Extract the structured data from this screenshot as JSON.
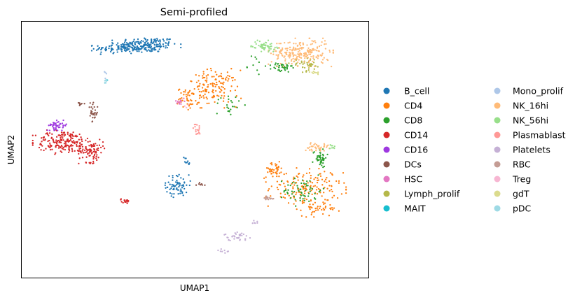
{
  "chart_data": {
    "type": "scatter",
    "title": "Semi-profiled",
    "xlabel": "UMAP1",
    "ylabel": "UMAP2",
    "xlim": [
      0,
      100
    ],
    "ylim": [
      0,
      100
    ],
    "ticks": false,
    "grid": false,
    "legend_placement": "right",
    "legend_columns": 2,
    "series": [
      {
        "name": "B_cell",
        "color": "#1f77b4",
        "clusters": [
          {
            "cx": 36,
            "cy": 91,
            "rx": 9,
            "ry": 3,
            "n": 170
          },
          {
            "cx": 29,
            "cy": 89.5,
            "rx": 8,
            "ry": 2,
            "n": 110
          },
          {
            "cx": 45,
            "cy": 36,
            "rx": 3.3,
            "ry": 4.2,
            "n": 70
          },
          {
            "cx": 47.5,
            "cy": 45.5,
            "rx": 1,
            "ry": 2,
            "n": 10
          }
        ]
      },
      {
        "name": "CD4",
        "color": "#ff7f0e",
        "clusters": [
          {
            "cx": 55,
            "cy": 74,
            "rx": 7.5,
            "ry": 7,
            "n": 150
          },
          {
            "cx": 48,
            "cy": 70,
            "rx": 3,
            "ry": 4,
            "n": 40
          },
          {
            "cx": 82,
            "cy": 35,
            "rx": 10.5,
            "ry": 7.5,
            "n": 160
          },
          {
            "cx": 73,
            "cy": 42,
            "rx": 3.5,
            "ry": 3,
            "n": 40
          },
          {
            "cx": 86,
            "cy": 27,
            "rx": 5,
            "ry": 3,
            "n": 40
          }
        ]
      },
      {
        "name": "CD8",
        "color": "#2ca02c",
        "clusters": [
          {
            "cx": 75,
            "cy": 82,
            "rx": 3,
            "ry": 2,
            "n": 40
          },
          {
            "cx": 86,
            "cy": 47,
            "rx": 2,
            "ry": 3.5,
            "n": 45
          },
          {
            "cx": 81,
            "cy": 34,
            "rx": 5.5,
            "ry": 5.5,
            "n": 60
          },
          {
            "cx": 60,
            "cy": 68,
            "rx": 4,
            "ry": 5,
            "n": 22
          },
          {
            "cx": 67,
            "cy": 83,
            "rx": 3,
            "ry": 4,
            "n": 10
          }
        ]
      },
      {
        "name": "CD14",
        "color": "#d62728",
        "clusters": [
          {
            "cx": 12,
            "cy": 53,
            "rx": 8,
            "ry": 4.5,
            "n": 190
          },
          {
            "cx": 20,
            "cy": 49.5,
            "rx": 3.5,
            "ry": 4.5,
            "n": 90
          },
          {
            "cx": 30,
            "cy": 30,
            "rx": 1.3,
            "ry": 0.9,
            "n": 20
          }
        ]
      },
      {
        "name": "CD16",
        "color": "#9e38e0",
        "clusters": [
          {
            "cx": 10.5,
            "cy": 59.5,
            "rx": 2.8,
            "ry": 1.8,
            "n": 45
          }
        ]
      },
      {
        "name": "DCs",
        "color": "#8c564b",
        "clusters": [
          {
            "cx": 20.5,
            "cy": 64,
            "rx": 1.4,
            "ry": 4,
            "n": 30
          },
          {
            "cx": 17,
            "cy": 68,
            "rx": 1,
            "ry": 1,
            "n": 8
          },
          {
            "cx": 51.5,
            "cy": 36.5,
            "rx": 1.2,
            "ry": 0.6,
            "n": 8
          }
        ]
      },
      {
        "name": "HSC",
        "color": "#e377c2",
        "clusters": [
          {
            "cx": 45.5,
            "cy": 69,
            "rx": 1.5,
            "ry": 1.5,
            "n": 12
          }
        ]
      },
      {
        "name": "Lymph_prolif",
        "color": "#b5b849",
        "clusters": [
          {
            "cx": 82,
            "cy": 83,
            "rx": 4.5,
            "ry": 2.5,
            "n": 45
          }
        ]
      },
      {
        "name": "MAIT",
        "color": "#17becf",
        "clusters": [
          {
            "cx": 24.5,
            "cy": 77,
            "rx": 0.7,
            "ry": 0.8,
            "n": 3
          }
        ]
      },
      {
        "name": "Mono_prolif",
        "color": "#aec7e8",
        "clusters": [
          {
            "cx": 24,
            "cy": 79,
            "rx": 0.5,
            "ry": 2,
            "n": 4
          }
        ]
      },
      {
        "name": "NK_16hi",
        "color": "#ffbb78",
        "clusters": [
          {
            "cx": 80.5,
            "cy": 88,
            "rx": 8.5,
            "ry": 5,
            "n": 230
          },
          {
            "cx": 85,
            "cy": 51,
            "rx": 3.5,
            "ry": 1.5,
            "n": 40
          }
        ]
      },
      {
        "name": "NK_56hi",
        "color": "#98df8a",
        "clusters": [
          {
            "cx": 70,
            "cy": 90.5,
            "rx": 3.5,
            "ry": 2,
            "n": 60
          },
          {
            "cx": 89.5,
            "cy": 51,
            "rx": 1,
            "ry": 1,
            "n": 8
          }
        ]
      },
      {
        "name": "Plasmablast",
        "color": "#ff9896",
        "clusters": [
          {
            "cx": 50.5,
            "cy": 58,
            "rx": 1,
            "ry": 2.5,
            "n": 18
          }
        ]
      },
      {
        "name": "Platelets",
        "color": "#c5b0d5",
        "clusters": [
          {
            "cx": 62,
            "cy": 16,
            "rx": 3.5,
            "ry": 1.6,
            "n": 35
          },
          {
            "cx": 58.5,
            "cy": 10.5,
            "rx": 2,
            "ry": 0.8,
            "n": 8
          },
          {
            "cx": 67,
            "cy": 21.5,
            "rx": 1.2,
            "ry": 1,
            "n": 6
          }
        ]
      },
      {
        "name": "RBC",
        "color": "#c49c94",
        "clusters": [
          {
            "cx": 71,
            "cy": 31,
            "rx": 2,
            "ry": 1.2,
            "n": 14
          }
        ]
      },
      {
        "name": "Treg",
        "color": "#f7b6d2",
        "clusters": [
          {
            "cx": 47.5,
            "cy": 67,
            "rx": 1,
            "ry": 1,
            "n": 3
          }
        ]
      },
      {
        "name": "gdT",
        "color": "#dbdb8d",
        "clusters": [
          {
            "cx": 85,
            "cy": 80,
            "rx": 2,
            "ry": 1,
            "n": 10
          }
        ]
      },
      {
        "name": "pDC",
        "color": "#9edae5",
        "clusters": [
          {
            "cx": 24.3,
            "cy": 76.5,
            "rx": 0.5,
            "ry": 1.5,
            "n": 8
          }
        ]
      }
    ]
  }
}
